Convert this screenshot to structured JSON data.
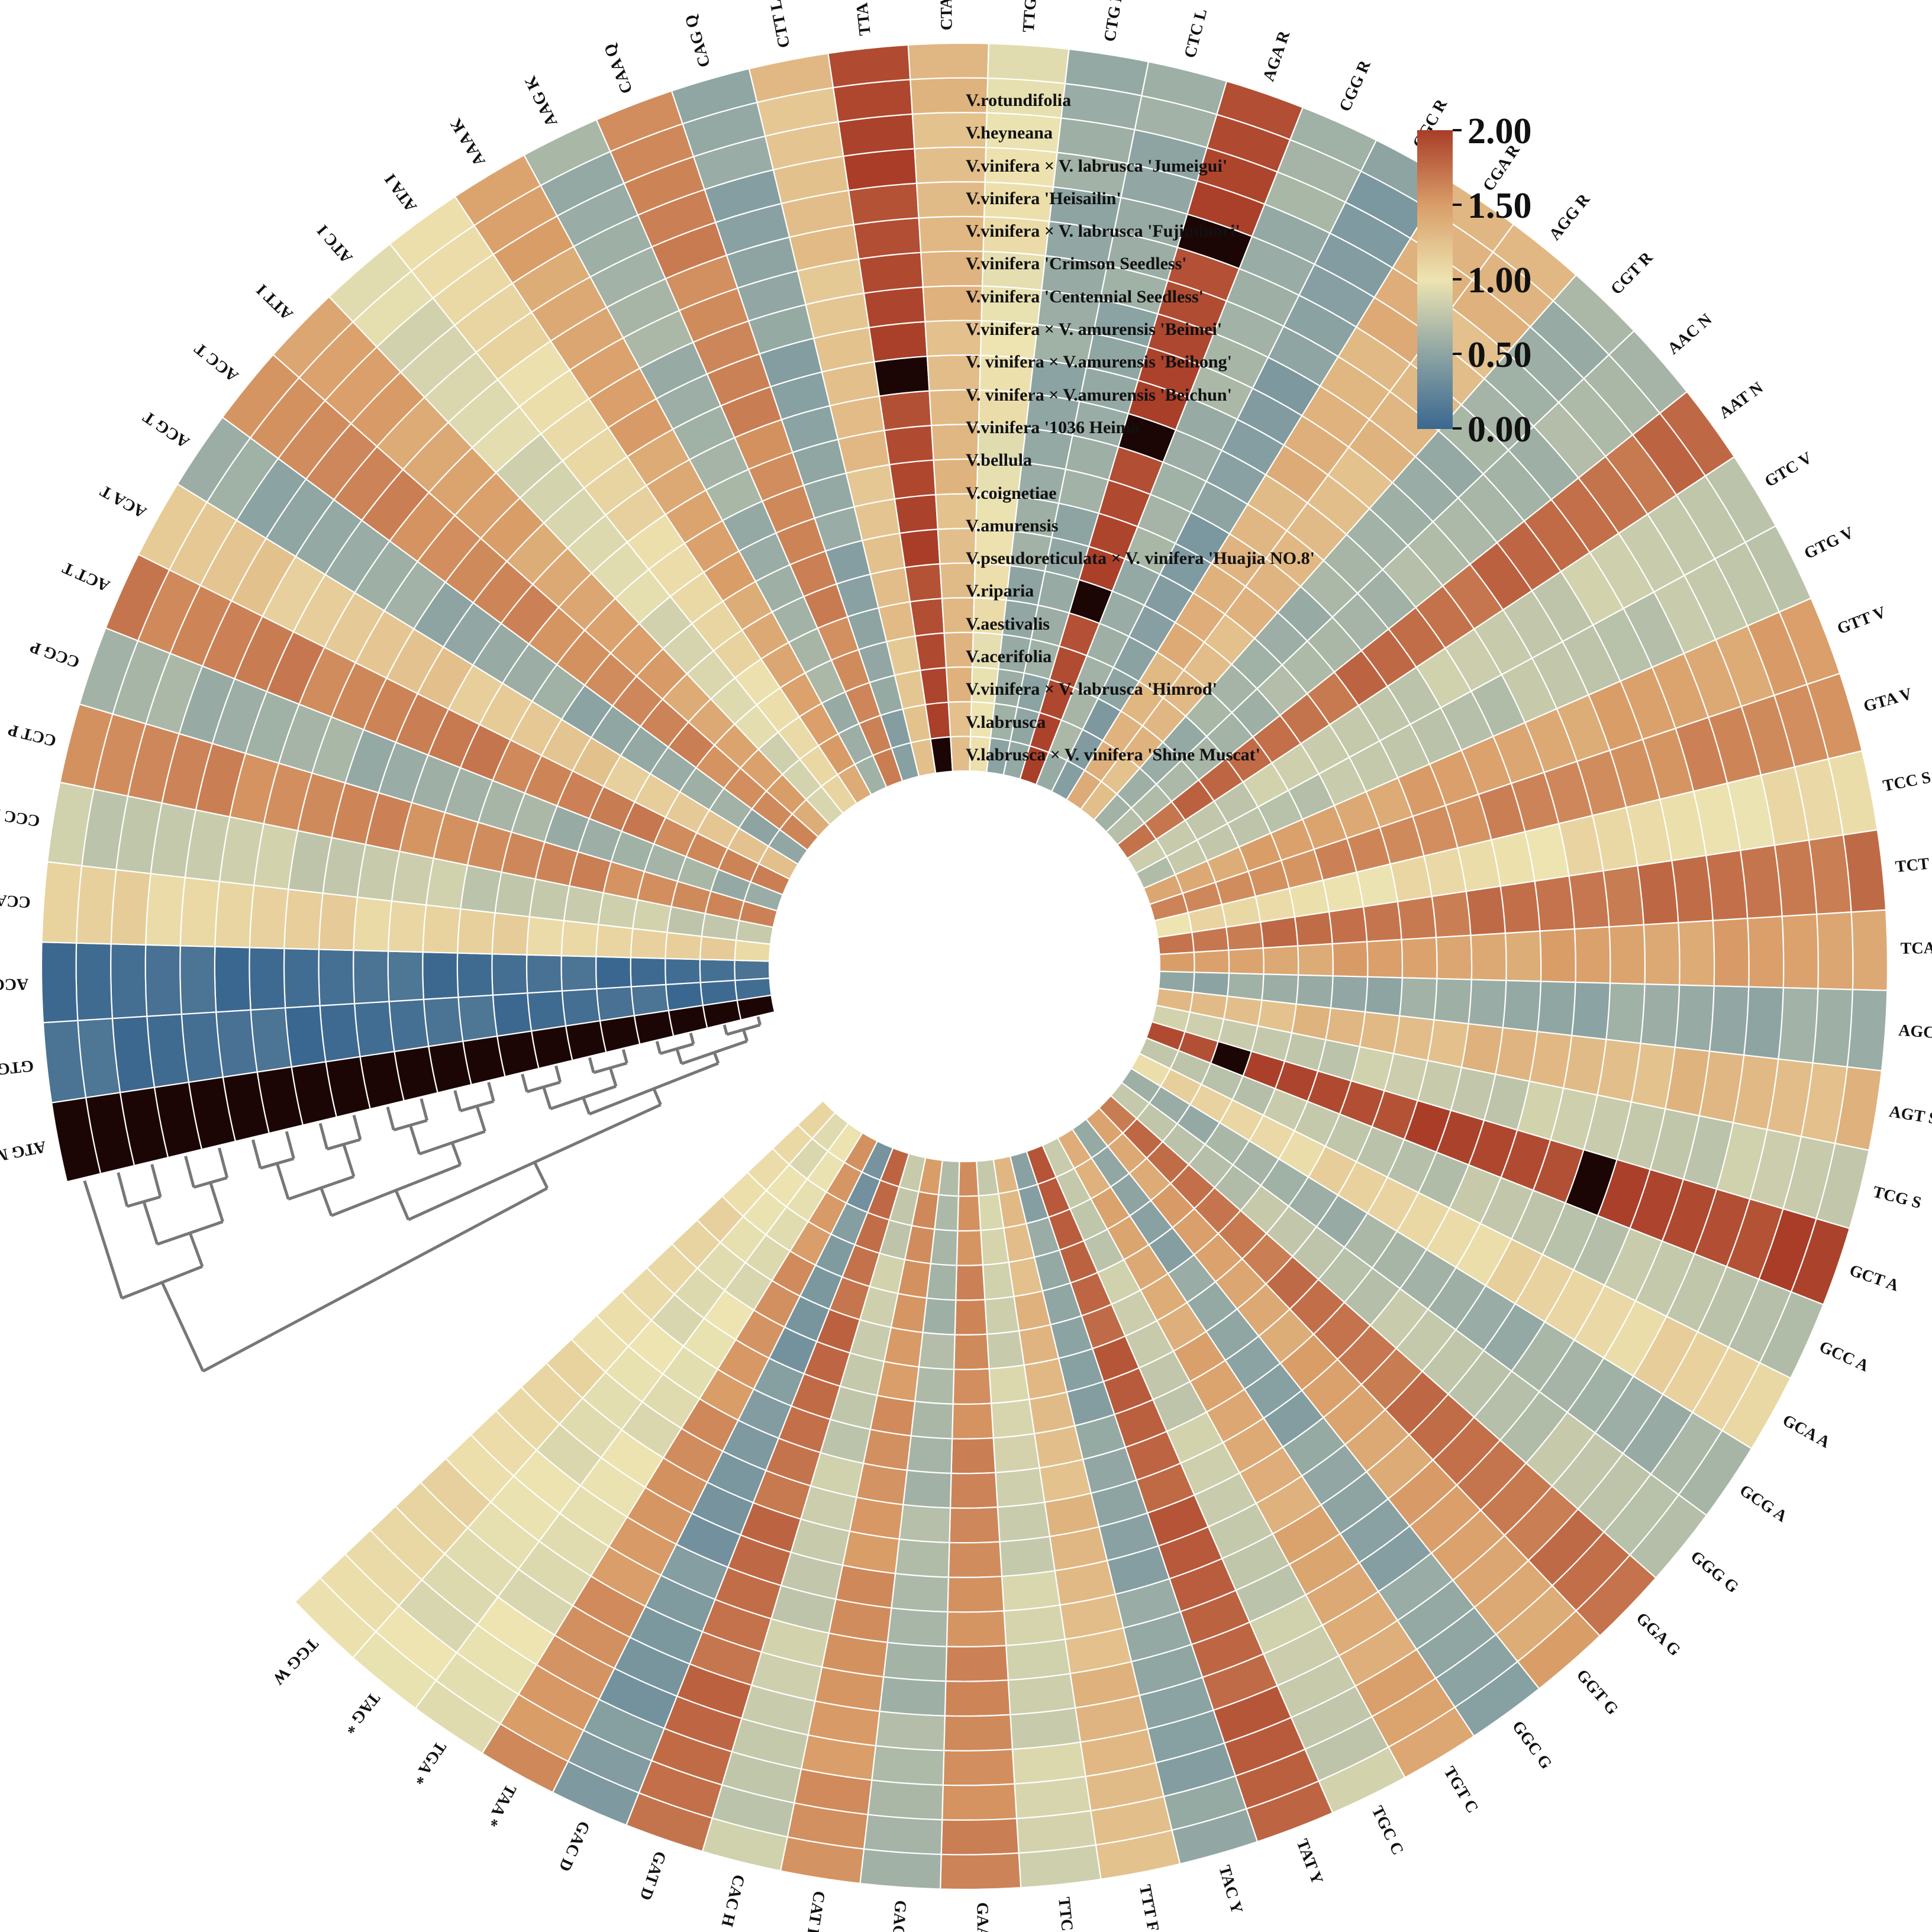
{
  "chart_data": {
    "type": "heatmap",
    "title": "",
    "layout": "circular",
    "color_scale": {
      "min": 0.0,
      "max": 2.0,
      "ticks": [
        "0.00",
        "0.50",
        "1.00",
        "1.50",
        "2.00"
      ],
      "colors": [
        "#3a6790",
        "#8da4a3",
        "#ede4b1",
        "#d99d68",
        "#a93d28"
      ]
    },
    "species": [
      "V.rotundifolia",
      "V.heyneana",
      "V.vinifera × V. labrusca 'Jumeigui'",
      "V.vinifera 'Heisailin'",
      "V.vinifera × V. labrusca 'Fujiminori'",
      "V.vinifera 'Crimson Seedless'",
      "V.vinifera 'Centennial Seedless'",
      "V.vinifera × V. amurensis 'Beimei'",
      "V. vinifera × V.amurensis 'Beihong'",
      "V. vinifera × V.amurensis 'Beichun'",
      "V.vinifera '1036 Heimo'",
      "V.bellula",
      "V.coignetiae",
      "V.amurensis",
      "V.pseudoreticulata × V. vinifera 'Huajia NO.8'",
      "V.riparia",
      "V.aestivalis",
      "V.acerifolia",
      "V.vinifera × V. labrusca 'Himrod'",
      "V.labrusca",
      "V.labrusca × V. vinifera 'Shine Muscat'"
    ],
    "codons": [
      "ATG M",
      "GTG M",
      "ACG M",
      "CCA P",
      "CCC P",
      "CCT P",
      "CCG P",
      "ACT T",
      "ACA T",
      "ACG T",
      "ACC T",
      "ATT I",
      "ATC I",
      "ATA I",
      "AAA K",
      "AAG K",
      "CAA Q",
      "CAG Q",
      "CTT L",
      "TTA L",
      "CTA L",
      "TTG L",
      "CTG L",
      "CTC L",
      "AGA R",
      "CGG R",
      "CGC R",
      "CGA R",
      "AGG R",
      "CGT R",
      "AAC N",
      "AAT N",
      "GTC V",
      "GTG V",
      "GTT V",
      "GTA V",
      "TCC S",
      "TCT S",
      "TCA S",
      "AGC S",
      "AGT S",
      "TCG S",
      "GCT A",
      "GCC A",
      "GCA A",
      "GCG A",
      "GGG G",
      "GGA G",
      "GGT G",
      "GGC G",
      "TGT C",
      "TGC C",
      "TAT Y",
      "TAC Y",
      "TTT F",
      "TTC F",
      "GAA E",
      "GAG E",
      "CAT H",
      "CAC H",
      "GAT D",
      "GAC D",
      "TAA *",
      "TGA *",
      "TAG *",
      "TGG W"
    ],
    "values": [
      3.5,
      0.06,
      0.06,
      1.12,
      0.8,
      1.6,
      0.6,
      1.65,
      1.2,
      0.55,
      1.6,
      1.45,
      0.9,
      1.08,
      1.45,
      0.6,
      1.62,
      0.5,
      1.25,
      1.95,
      1.3,
      1.0,
      0.55,
      0.55,
      1.96,
      0.6,
      0.45,
      1.35,
      1.3,
      0.6,
      0.65,
      1.75,
      0.8,
      0.75,
      1.45,
      1.6,
      1.05,
      1.72,
      1.45,
      0.55,
      1.3,
      0.8,
      1.95,
      0.75,
      1.1,
      0.6,
      0.75,
      1.72,
      1.45,
      0.5,
      1.42,
      0.8,
      1.82,
      0.5,
      1.3,
      0.85,
      1.6,
      0.65,
      1.55,
      0.8,
      1.75,
      0.4,
      1.55,
      0.95,
      0.95,
      1.08
    ],
    "dendrogram": "species clustering"
  }
}
